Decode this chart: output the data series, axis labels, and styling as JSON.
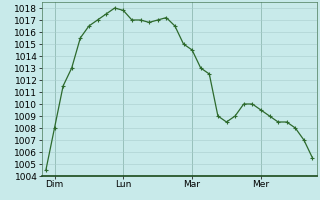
{
  "y_values": [
    1004.5,
    1008.0,
    1011.5,
    1013.0,
    1015.5,
    1016.5,
    1017.0,
    1017.5,
    1018.0,
    1017.8,
    1017.0,
    1017.0,
    1016.8,
    1017.0,
    1017.2,
    1016.5,
    1015.0,
    1014.5,
    1013.0,
    1012.5,
    1009.0,
    1008.5,
    1009.0,
    1010.0,
    1010.0,
    1009.5,
    1009.0,
    1008.5,
    1008.5,
    1008.0,
    1007.0,
    1005.5
  ],
  "x_tick_positions": [
    1,
    9,
    17,
    25
  ],
  "x_tick_labels": [
    "Dim",
    "Lun",
    "Mar",
    "Mer"
  ],
  "ylim": [
    1004,
    1018.5
  ],
  "yticks": [
    1004,
    1005,
    1006,
    1007,
    1008,
    1009,
    1010,
    1011,
    1012,
    1013,
    1014,
    1015,
    1016,
    1017,
    1018
  ],
  "line_color": "#2d6a2d",
  "marker": "+",
  "marker_size": 3,
  "marker_linewidth": 0.8,
  "linewidth": 0.9,
  "background_color": "#c8eaea",
  "grid_color": "#a8cccc",
  "tick_label_fontsize": 6.5,
  "fig_width": 3.2,
  "fig_height": 2.0,
  "dpi": 100
}
